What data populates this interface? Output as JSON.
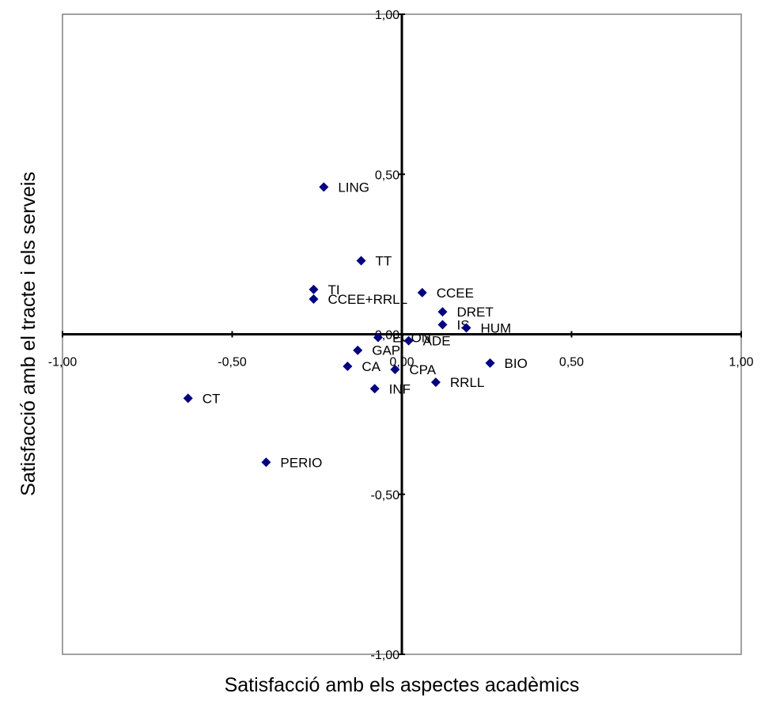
{
  "chart_data": {
    "type": "scatter",
    "title": "",
    "xlabel": "Satisfacció amb els aspectes acadèmics",
    "ylabel": "Satisfacció amb el tracte i els serveis",
    "xlim": [
      -1,
      1
    ],
    "ylim": [
      -1,
      1
    ],
    "x_ticks": [
      {
        "value": -1,
        "label": "-1,00"
      },
      {
        "value": -0.5,
        "label": "-0,50"
      },
      {
        "value": 0,
        "label": "0,00"
      },
      {
        "value": 0.5,
        "label": "0,50"
      },
      {
        "value": 1,
        "label": "1,00"
      }
    ],
    "y_ticks": [
      {
        "value": 1,
        "label": "1,00"
      },
      {
        "value": 0.5,
        "label": "0,50"
      },
      {
        "value": 0,
        "label": "0,00"
      },
      {
        "value": -0.5,
        "label": "-0,50"
      },
      {
        "value": -1,
        "label": "-1,00"
      }
    ],
    "grid": false,
    "legend": "none",
    "marker_color": "#000080",
    "points": [
      {
        "label": "LING",
        "x": -0.23,
        "y": 0.46
      },
      {
        "label": "TT",
        "x": -0.12,
        "y": 0.23
      },
      {
        "label": "TI",
        "x": -0.26,
        "y": 0.14
      },
      {
        "label": "CCEE+RRLL",
        "x": -0.26,
        "y": 0.11
      },
      {
        "label": "CCEE",
        "x": 0.06,
        "y": 0.13
      },
      {
        "label": "DRET",
        "x": 0.12,
        "y": 0.07
      },
      {
        "label": "IS",
        "x": 0.12,
        "y": 0.03
      },
      {
        "label": "HUM",
        "x": 0.19,
        "y": 0.02
      },
      {
        "label": "ECON",
        "x": -0.07,
        "y": -0.01
      },
      {
        "label": "ADE",
        "x": 0.02,
        "y": -0.02
      },
      {
        "label": "GAP",
        "x": -0.13,
        "y": -0.05
      },
      {
        "label": "CA",
        "x": -0.16,
        "y": -0.1
      },
      {
        "label": "CPA",
        "x": -0.02,
        "y": -0.11
      },
      {
        "label": "BIO",
        "x": 0.26,
        "y": -0.09
      },
      {
        "label": "RRLL",
        "x": 0.1,
        "y": -0.15
      },
      {
        "label": "INF",
        "x": -0.08,
        "y": -0.17
      },
      {
        "label": "CT",
        "x": -0.63,
        "y": -0.2
      },
      {
        "label": "PERIO",
        "x": -0.4,
        "y": -0.4
      }
    ]
  }
}
